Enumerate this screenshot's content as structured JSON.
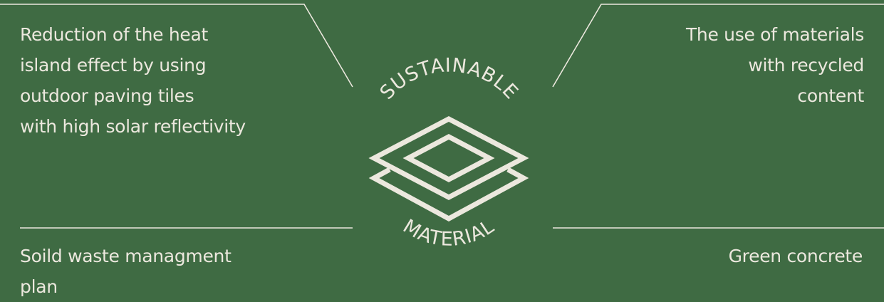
{
  "colors": {
    "background": "#3f6b43",
    "foreground": "#ece8de"
  },
  "emblem": {
    "icon": "layers-icon",
    "top_text": "SUSTAINABLE",
    "bottom_text": "MATERIAL"
  },
  "points": {
    "top_left": [
      "Reduction of the heat",
      "island effect by using",
      "outdoor paving tiles",
      "with high solar reflectivity"
    ],
    "top_right": [
      "The use of materials",
      "with recycled",
      "content"
    ],
    "bottom_left": [
      "Soild waste managment",
      "plan"
    ],
    "bottom_right": [
      "Green concrete"
    ]
  }
}
